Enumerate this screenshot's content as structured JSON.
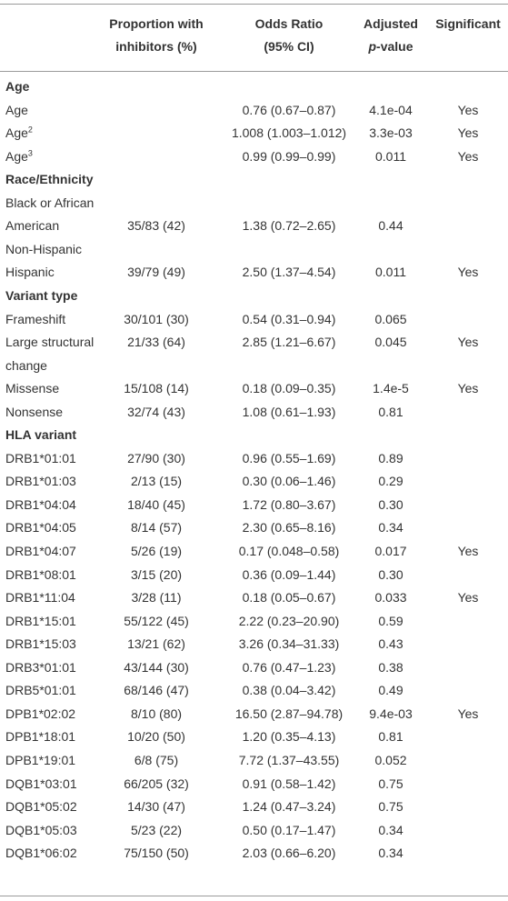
{
  "table": {
    "header": [
      {
        "lines": [
          "Proportion with",
          "inhibitors (%)"
        ]
      },
      {
        "lines": [
          "Odds Ratio",
          "(95% CI)"
        ]
      },
      {
        "lines": [
          "Adjusted"
        ],
        "italic": "p",
        "rest": "-value"
      },
      {
        "lines": [
          "Significant"
        ]
      }
    ],
    "rows": [
      {
        "section": "Age"
      },
      {
        "label": "Age",
        "or": "0.76 (0.67–0.87)",
        "p": "4.1e-04",
        "sig": "Yes"
      },
      {
        "label": "Age",
        "sup": "2",
        "or": "1.008 (1.003–1.012)",
        "p": "3.3e-03",
        "sig": "Yes"
      },
      {
        "label": "Age",
        "sup": "3",
        "or": "0.99 (0.99–0.99)",
        "p": "0.011",
        "sig": "Yes"
      },
      {
        "section": "Race/Ethnicity"
      },
      {
        "label": "Black or African"
      },
      {
        "label": "American",
        "prop": "35/83 (42)",
        "or": "1.38 (0.72–2.65)",
        "p": "0.44"
      },
      {
        "label": "Non-Hispanic"
      },
      {
        "label": "Hispanic",
        "prop": "39/79 (49)",
        "or": "2.50 (1.37–4.54)",
        "p": "0.011",
        "sig": "Yes"
      },
      {
        "section": "Variant type"
      },
      {
        "label": "Frameshift",
        "prop": "30/101 (30)",
        "or": "0.54 (0.31–0.94)",
        "p": "0.065"
      },
      {
        "label": "Large structural",
        "prop": "21/33 (64)",
        "or": "2.85 (1.21–6.67)",
        "p": "0.045",
        "sig": "Yes"
      },
      {
        "label": "change"
      },
      {
        "label": "Missense",
        "prop": "15/108 (14)",
        "or": "0.18 (0.09–0.35)",
        "p": "1.4e-5",
        "sig": "Yes"
      },
      {
        "label": "Nonsense",
        "prop": "32/74 (43)",
        "or": "1.08 (0.61–1.93)",
        "p": "0.81"
      },
      {
        "section": "HLA variant"
      },
      {
        "label": "DRB1*01:01",
        "prop": "27/90 (30)",
        "or": "0.96 (0.55–1.69)",
        "p": "0.89"
      },
      {
        "label": "DRB1*01:03",
        "prop": "2/13 (15)",
        "or": "0.30 (0.06–1.46)",
        "p": "0.29"
      },
      {
        "label": "DRB1*04:04",
        "prop": "18/40 (45)",
        "or": "1.72 (0.80–3.67)",
        "p": "0.30"
      },
      {
        "label": "DRB1*04:05",
        "prop": "8/14 (57)",
        "or": "2.30 (0.65–8.16)",
        "p": "0.34"
      },
      {
        "label": "DRB1*04:07",
        "prop": "5/26 (19)",
        "or": "0.17 (0.048–0.58)",
        "p": "0.017",
        "sig": "Yes"
      },
      {
        "label": "DRB1*08:01",
        "prop": "3/15 (20)",
        "or": "0.36 (0.09–1.44)",
        "p": "0.30"
      },
      {
        "label": "DRB1*11:04",
        "prop": "3/28 (11)",
        "or": "0.18 (0.05–0.67)",
        "p": "0.033",
        "sig": "Yes"
      },
      {
        "label": "DRB1*15:01",
        "prop": "55/122 (45)",
        "or": "2.22 (0.23–20.90)",
        "p": "0.59"
      },
      {
        "label": "DRB1*15:03",
        "prop": "13/21 (62)",
        "or": "3.26 (0.34–31.33)",
        "p": "0.43"
      },
      {
        "label": "DRB3*01:01",
        "prop": "43/144 (30)",
        "or": "0.76 (0.47–1.23)",
        "p": "0.38"
      },
      {
        "label": "DRB5*01:01",
        "prop": "68/146 (47)",
        "or": "0.38 (0.04–3.42)",
        "p": "0.49"
      },
      {
        "label": "DPB1*02:02",
        "prop": "8/10 (80)",
        "or": "16.50 (2.87–94.78)",
        "p": "9.4e-03",
        "sig": "Yes"
      },
      {
        "label": "DPB1*18:01",
        "prop": "10/20 (50)",
        "or": "1.20 (0.35–4.13)",
        "p": "0.81"
      },
      {
        "label": "DPB1*19:01",
        "prop": "6/8 (75)",
        "or": "7.72 (1.37–43.55)",
        "p": "0.052"
      },
      {
        "label": "DQB1*03:01",
        "prop": "66/205 (32)",
        "or": "0.91 (0.58–1.42)",
        "p": "0.75"
      },
      {
        "label": "DQB1*05:02",
        "prop": "14/30 (47)",
        "or": "1.24 (0.47–3.24)",
        "p": "0.75"
      },
      {
        "label": "DQB1*05:03",
        "prop": "5/23 (22)",
        "or": "0.50 (0.17–1.47)",
        "p": "0.34"
      },
      {
        "label": "DQB1*06:02",
        "prop": "75/150 (50)",
        "or": "2.03 (0.66–6.20)",
        "p": "0.34"
      }
    ]
  }
}
